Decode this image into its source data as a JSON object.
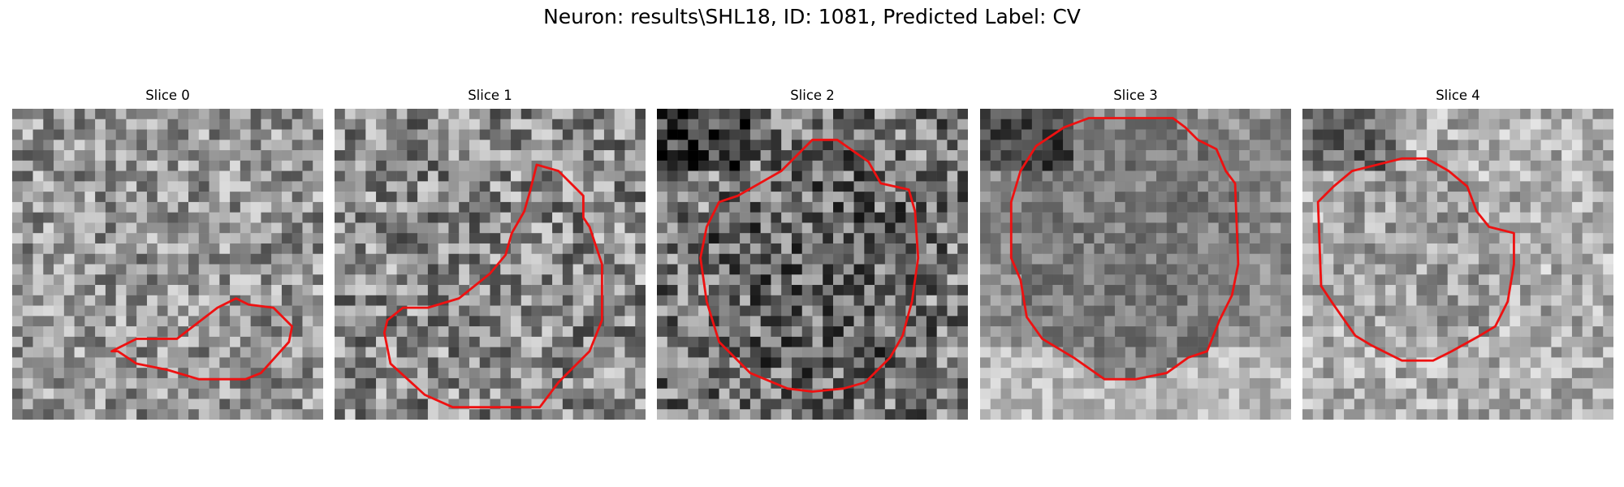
{
  "figure": {
    "title": "Neuron: results\\SHL18, ID: 1081, Predicted Label: CV"
  },
  "colors": {
    "contour": "#ee1111",
    "background": "#ffffff"
  },
  "panels": [
    {
      "title": "Slice 0",
      "seed": 11,
      "base": 150,
      "variance": 70,
      "contour": [
        [
          0.32,
          0.78
        ],
        [
          0.4,
          0.74
        ],
        [
          0.53,
          0.74
        ],
        [
          0.66,
          0.64
        ],
        [
          0.72,
          0.61
        ],
        [
          0.76,
          0.63
        ],
        [
          0.84,
          0.64
        ],
        [
          0.9,
          0.7
        ],
        [
          0.89,
          0.75
        ],
        [
          0.8,
          0.85
        ],
        [
          0.75,
          0.87
        ],
        [
          0.6,
          0.87
        ],
        [
          0.5,
          0.84
        ],
        [
          0.4,
          0.82
        ],
        [
          0.34,
          0.78
        ]
      ],
      "blobs": []
    },
    {
      "title": "Slice 1",
      "seed": 29,
      "base": 140,
      "variance": 80,
      "contour": [
        [
          0.65,
          0.18
        ],
        [
          0.72,
          0.2
        ],
        [
          0.8,
          0.28
        ],
        [
          0.8,
          0.35
        ],
        [
          0.82,
          0.38
        ],
        [
          0.84,
          0.44
        ],
        [
          0.86,
          0.5
        ],
        [
          0.86,
          0.68
        ],
        [
          0.82,
          0.78
        ],
        [
          0.72,
          0.88
        ],
        [
          0.66,
          0.96
        ],
        [
          0.38,
          0.96
        ],
        [
          0.29,
          0.92
        ],
        [
          0.18,
          0.82
        ],
        [
          0.16,
          0.72
        ],
        [
          0.17,
          0.68
        ],
        [
          0.22,
          0.64
        ],
        [
          0.3,
          0.64
        ],
        [
          0.4,
          0.61
        ],
        [
          0.5,
          0.53
        ],
        [
          0.55,
          0.47
        ],
        [
          0.57,
          0.4
        ],
        [
          0.61,
          0.33
        ],
        [
          0.63,
          0.26
        ]
      ],
      "blobs": []
    },
    {
      "title": "Slice 2",
      "seed": 47,
      "base": 120,
      "variance": 85,
      "contour": [
        [
          0.5,
          0.1
        ],
        [
          0.58,
          0.1
        ],
        [
          0.68,
          0.17
        ],
        [
          0.72,
          0.24
        ],
        [
          0.81,
          0.26
        ],
        [
          0.83,
          0.33
        ],
        [
          0.84,
          0.48
        ],
        [
          0.82,
          0.62
        ],
        [
          0.79,
          0.73
        ],
        [
          0.75,
          0.8
        ],
        [
          0.67,
          0.88
        ],
        [
          0.6,
          0.9
        ],
        [
          0.5,
          0.91
        ],
        [
          0.42,
          0.9
        ],
        [
          0.3,
          0.85
        ],
        [
          0.2,
          0.75
        ],
        [
          0.16,
          0.62
        ],
        [
          0.14,
          0.48
        ],
        [
          0.16,
          0.38
        ],
        [
          0.2,
          0.3
        ],
        [
          0.26,
          0.28
        ],
        [
          0.33,
          0.24
        ],
        [
          0.4,
          0.2
        ]
      ],
      "blobs": []
    },
    {
      "title": "Slice 3",
      "seed": 63,
      "base": 140,
      "variance": 40,
      "contour": [
        [
          0.35,
          0.03
        ],
        [
          0.62,
          0.03
        ],
        [
          0.66,
          0.06
        ],
        [
          0.7,
          0.1
        ],
        [
          0.76,
          0.13
        ],
        [
          0.79,
          0.2
        ],
        [
          0.82,
          0.24
        ],
        [
          0.83,
          0.5
        ],
        [
          0.81,
          0.6
        ],
        [
          0.77,
          0.68
        ],
        [
          0.73,
          0.78
        ],
        [
          0.67,
          0.8
        ],
        [
          0.6,
          0.85
        ],
        [
          0.5,
          0.87
        ],
        [
          0.4,
          0.87
        ],
        [
          0.3,
          0.8
        ],
        [
          0.2,
          0.74
        ],
        [
          0.15,
          0.67
        ],
        [
          0.13,
          0.55
        ],
        [
          0.1,
          0.48
        ],
        [
          0.1,
          0.3
        ],
        [
          0.13,
          0.2
        ],
        [
          0.18,
          0.12
        ],
        [
          0.27,
          0.06
        ]
      ],
      "blobs": []
    },
    {
      "title": "Slice 4",
      "seed": 81,
      "base": 175,
      "variance": 55,
      "contour": [
        [
          0.32,
          0.16
        ],
        [
          0.4,
          0.16
        ],
        [
          0.47,
          0.2
        ],
        [
          0.53,
          0.25
        ],
        [
          0.56,
          0.33
        ],
        [
          0.6,
          0.38
        ],
        [
          0.68,
          0.4
        ],
        [
          0.68,
          0.5
        ],
        [
          0.66,
          0.62
        ],
        [
          0.62,
          0.7
        ],
        [
          0.57,
          0.73
        ],
        [
          0.48,
          0.78
        ],
        [
          0.42,
          0.81
        ],
        [
          0.32,
          0.81
        ],
        [
          0.22,
          0.76
        ],
        [
          0.17,
          0.73
        ],
        [
          0.1,
          0.63
        ],
        [
          0.06,
          0.57
        ],
        [
          0.05,
          0.3
        ],
        [
          0.1,
          0.25
        ],
        [
          0.16,
          0.2
        ],
        [
          0.24,
          0.18
        ]
      ],
      "blobs": []
    }
  ]
}
